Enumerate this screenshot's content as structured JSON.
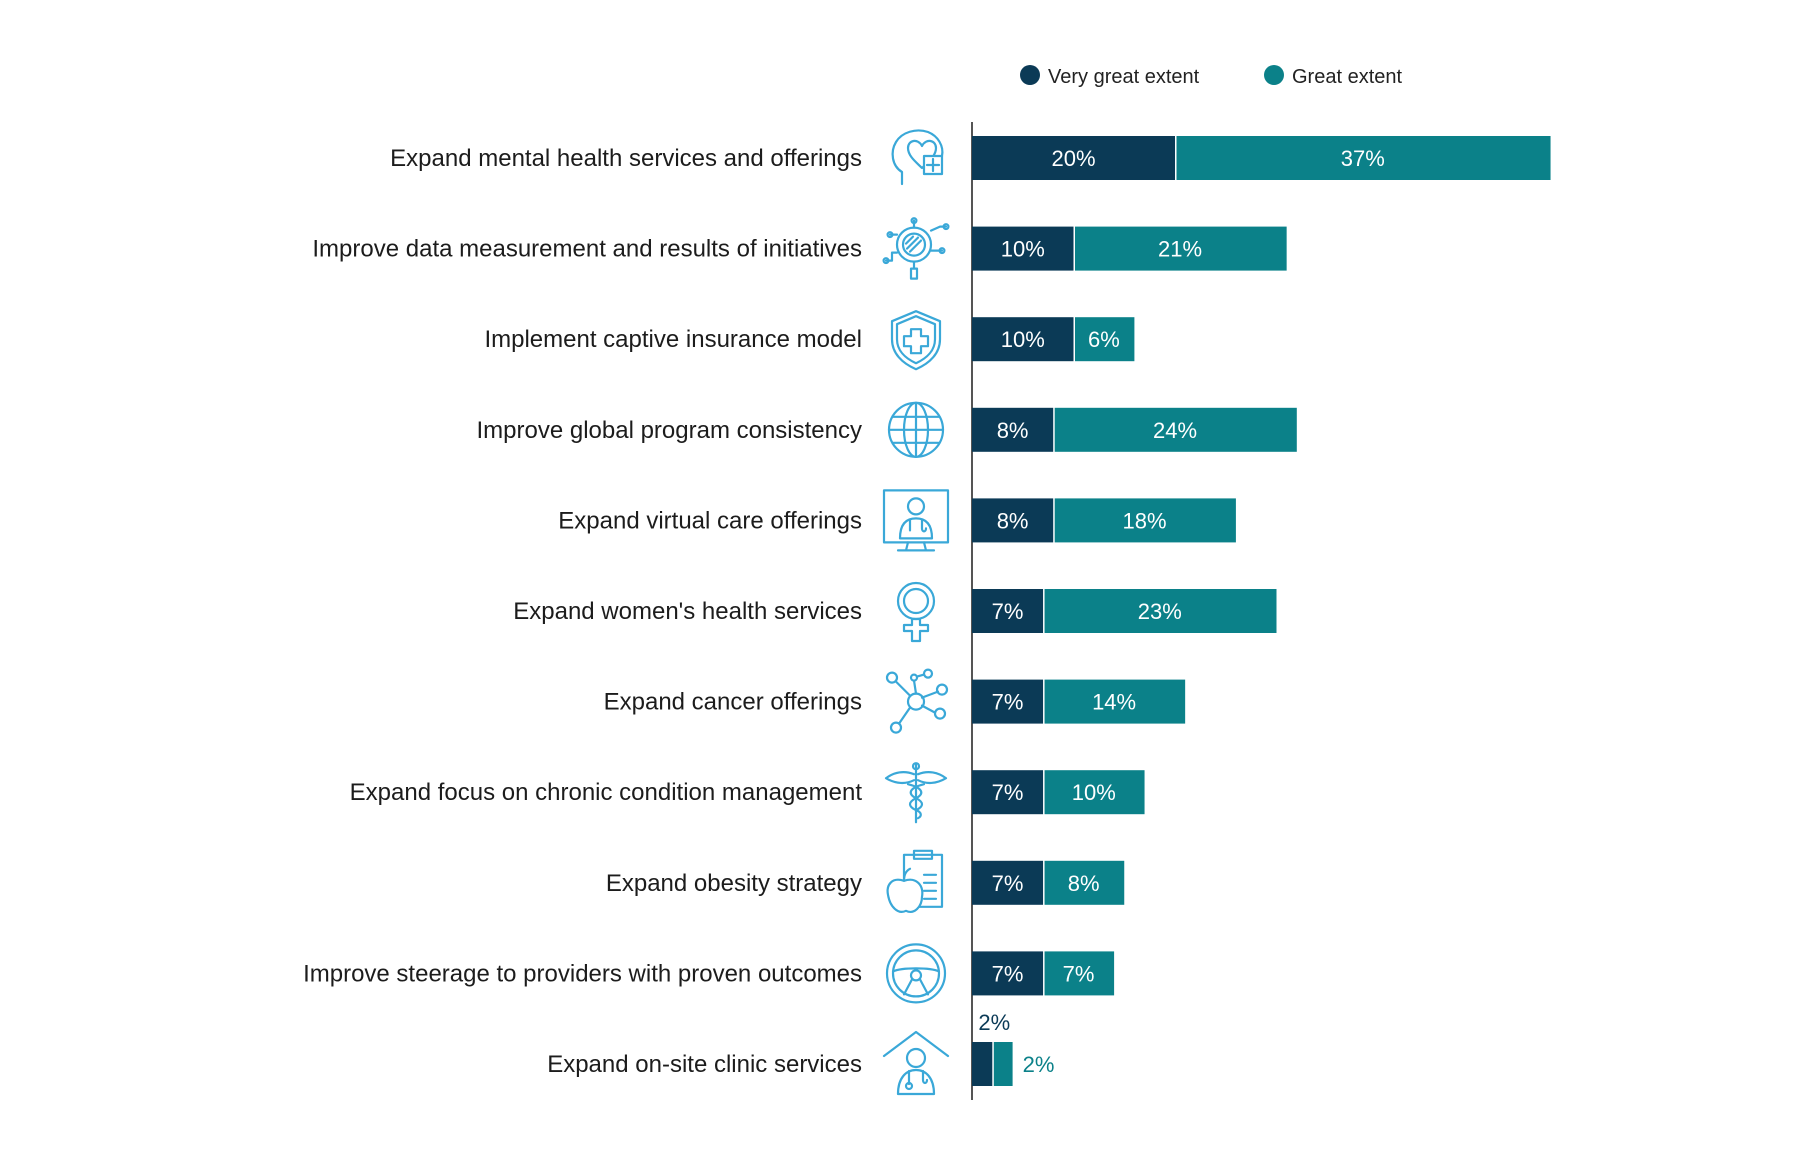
{
  "colors": {
    "very_great": "#0b3a56",
    "great": "#0b8189",
    "icon": "#3aa8d8",
    "label": "#1c1c1c",
    "axis": "#555555"
  },
  "legend": [
    {
      "label": "Very great extent",
      "color": "#0b3a56"
    },
    {
      "label": "Great extent",
      "color": "#0b8189"
    }
  ],
  "chart_data": {
    "type": "bar",
    "orientation": "horizontal",
    "stacked": true,
    "legend_position": "top-right",
    "grid": false,
    "xlim": [
      0,
      60
    ],
    "categories": [
      "Expand mental health services and offerings",
      "Improve data measurement and results of initiatives",
      "Implement captive insurance model",
      "Improve global program consistency",
      "Expand virtual care offerings",
      "Expand women's health services",
      "Expand cancer offerings",
      "Expand focus on chronic condition management",
      "Expand obesity strategy",
      "Improve steerage to providers with proven outcomes",
      "Expand on-site clinic services"
    ],
    "icons": [
      "head-heart-plus-icon",
      "magnifier-data-icon",
      "shield-cross-icon",
      "globe-icon",
      "virtual-doctor-monitor-icon",
      "female-symbol-icon",
      "molecule-icon",
      "caduceus-icon",
      "apple-clipboard-icon",
      "steering-wheel-icon",
      "house-doctor-icon"
    ],
    "series": [
      {
        "name": "Very great extent",
        "values": [
          20,
          10,
          10,
          8,
          8,
          7,
          7,
          7,
          7,
          7,
          2
        ],
        "labels": [
          "20%",
          "10%",
          "10%",
          "8%",
          "8%",
          "7%",
          "7%",
          "7%",
          "7%",
          "7%",
          "2%"
        ]
      },
      {
        "name": "Great extent",
        "values": [
          37,
          21,
          6,
          24,
          18,
          23,
          14,
          10,
          8,
          7,
          2
        ],
        "labels": [
          "37%",
          "21%",
          "6%",
          "24%",
          "18%",
          "23%",
          "14%",
          "10%",
          "8%",
          "7%",
          "2%"
        ]
      }
    ]
  }
}
